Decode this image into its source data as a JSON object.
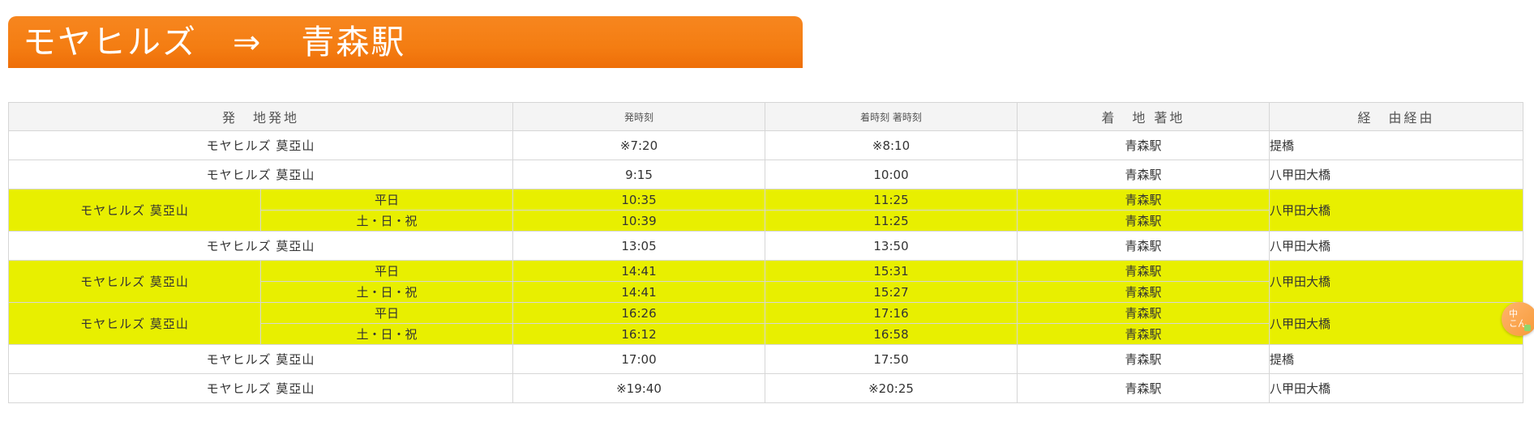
{
  "title": {
    "from": "モヤヒルズ",
    "arrow": "⇒",
    "to": "青森駅",
    "color": "#f47d12"
  },
  "table": {
    "headers": {
      "origin": "発　地発地",
      "depart": "発時刻",
      "arrive": "着時刻 著時刻",
      "destination": "着　地 著地",
      "via": "経　由経由"
    },
    "highlight_color": "#e8ef00",
    "rows": [
      {
        "origin": "モヤヒルズ 莫亞山",
        "depart": "※7:20",
        "arrive": "※8:10",
        "destination": "青森駅",
        "via": "提橋"
      },
      {
        "origin": "モヤヒルズ 莫亞山",
        "depart": "9:15",
        "arrive": "10:00",
        "destination": "青森駅",
        "via": "八甲田大橋"
      },
      {
        "origin": "モヤヒルズ 莫亞山",
        "via": "八甲田大橋",
        "variants": [
          {
            "day": "平日",
            "depart": "10:35",
            "arrive": "11:25",
            "destination": "青森駅"
          },
          {
            "day": "土・日・祝",
            "depart": "10:39",
            "arrive": "11:25",
            "destination": "青森駅"
          }
        ]
      },
      {
        "origin": "モヤヒルズ 莫亞山",
        "depart": "13:05",
        "arrive": "13:50",
        "destination": "青森駅",
        "via": "八甲田大橋"
      },
      {
        "origin": "モヤヒルズ 莫亞山",
        "via": "八甲田大橋",
        "variants": [
          {
            "day": "平日",
            "depart": "14:41",
            "arrive": "15:31",
            "destination": "青森駅"
          },
          {
            "day": "土・日・祝",
            "depart": "14:41",
            "arrive": "15:27",
            "destination": "青森駅"
          }
        ]
      },
      {
        "origin": "モヤヒルズ 莫亞山",
        "via": "八甲田大橋",
        "variants": [
          {
            "day": "平日",
            "depart": "16:26",
            "arrive": "17:16",
            "destination": "青森駅"
          },
          {
            "day": "土・日・祝",
            "depart": "16:12",
            "arrive": "16:58",
            "destination": "青森駅"
          }
        ]
      },
      {
        "origin": "モヤヒルズ 莫亞山",
        "depart": "17:00",
        "arrive": "17:50",
        "destination": "青森駅",
        "via": "提橋"
      },
      {
        "origin": "モヤヒルズ 莫亞山",
        "depart": "※19:40",
        "arrive": "※20:25",
        "destination": "青森駅",
        "via": "八甲田大橋"
      }
    ]
  },
  "floating_widget": {
    "label": "中\nこん",
    "icon": "translate-widget-icon"
  }
}
